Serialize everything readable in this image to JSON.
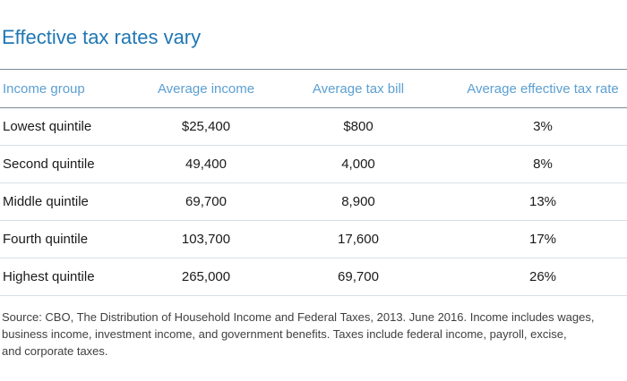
{
  "title": "Effective tax rates vary",
  "table": {
    "headers": [
      "Income group",
      "Average income",
      "Average tax bill",
      "Average effective tax rate"
    ],
    "rows": [
      [
        "Lowest quintile",
        "$25,400",
        "$800",
        "3%"
      ],
      [
        "Second quintile",
        "49,400",
        "4,000",
        "8%"
      ],
      [
        "Middle quintile",
        "69,700",
        "8,900",
        "13%"
      ],
      [
        "Fourth quintile",
        "103,700",
        "17,600",
        "17%"
      ],
      [
        "Highest quintile",
        "265,000",
        "69,700",
        "26%"
      ]
    ]
  },
  "source": {
    "lines": [
      "Source: CBO, The Distribution of Household Income and Federal Taxes, 2013. June 2016. Income includes wages,",
      "business income, investment income, and government benefits. Taxes include federal income, payroll, excise,",
      "and corporate taxes."
    ]
  },
  "chart_data": {
    "type": "table",
    "title": "Effective tax rates vary",
    "columns": [
      "Income group",
      "Average income",
      "Average tax bill",
      "Average effective tax rate"
    ],
    "categories": [
      "Lowest quintile",
      "Second quintile",
      "Middle quintile",
      "Fourth quintile",
      "Highest quintile"
    ],
    "series": [
      {
        "name": "Average income",
        "values": [
          25400,
          49400,
          69700,
          103700,
          265000
        ]
      },
      {
        "name": "Average tax bill",
        "values": [
          800,
          4000,
          8900,
          17600,
          69700
        ]
      },
      {
        "name": "Average effective tax rate (%)",
        "values": [
          3,
          8,
          13,
          17,
          26
        ]
      }
    ]
  },
  "colors": {
    "title_blue": "#1f77b4",
    "header_blue": "#5b9fd2",
    "header_border": "#7b8a96",
    "row_border": "#d7e0e6",
    "body_text": "#1a1a1a",
    "source_text": "#404040"
  }
}
